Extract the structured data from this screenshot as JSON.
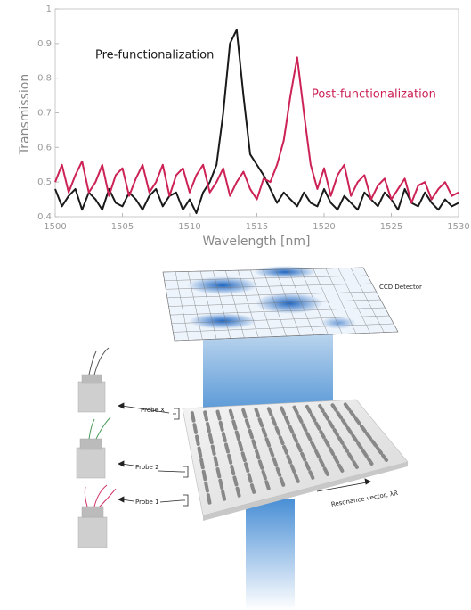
{
  "chart_data": {
    "type": "line",
    "x_label": "Wavelength [nm]",
    "y_label": "Transmission",
    "x": [
      1500,
      1500.5,
      1501,
      1501.5,
      1502,
      1502.5,
      1503,
      1503.5,
      1504,
      1504.5,
      1505,
      1505.5,
      1506,
      1506.5,
      1507,
      1507.5,
      1508,
      1508.5,
      1509,
      1509.5,
      1510,
      1510.5,
      1511,
      1511.5,
      1512,
      1512.5,
      1513,
      1513.5,
      1514,
      1514.5,
      1515,
      1515.5,
      1516,
      1516.5,
      1517,
      1517.5,
      1518,
      1518.5,
      1519,
      1519.5,
      1520,
      1520.5,
      1521,
      1521.5,
      1522,
      1522.5,
      1523,
      1523.5,
      1524,
      1524.5,
      1525,
      1525.5,
      1526,
      1526.5,
      1527,
      1527.5,
      1528,
      1528.5,
      1529,
      1529.5,
      1530
    ],
    "series": [
      {
        "name": "Pre-functionalization",
        "color": "#1a1a1a",
        "values": [
          0.48,
          0.43,
          0.46,
          0.48,
          0.42,
          0.47,
          0.45,
          0.42,
          0.48,
          0.44,
          0.43,
          0.47,
          0.45,
          0.42,
          0.46,
          0.48,
          0.43,
          0.46,
          0.47,
          0.42,
          0.45,
          0.41,
          0.47,
          0.5,
          0.55,
          0.7,
          0.9,
          0.94,
          0.75,
          0.58,
          0.55,
          0.52,
          0.48,
          0.44,
          0.47,
          0.45,
          0.43,
          0.47,
          0.44,
          0.43,
          0.48,
          0.44,
          0.42,
          0.46,
          0.44,
          0.42,
          0.47,
          0.45,
          0.43,
          0.47,
          0.45,
          0.42,
          0.48,
          0.44,
          0.43,
          0.47,
          0.44,
          0.42,
          0.45,
          0.43,
          0.44
        ]
      },
      {
        "name": "Post-functionalization",
        "color": "#cc2255",
        "values": [
          0.5,
          0.55,
          0.47,
          0.52,
          0.56,
          0.47,
          0.5,
          0.55,
          0.46,
          0.52,
          0.54,
          0.46,
          0.51,
          0.55,
          0.47,
          0.5,
          0.55,
          0.46,
          0.52,
          0.54,
          0.47,
          0.52,
          0.55,
          0.47,
          0.5,
          0.54,
          0.46,
          0.5,
          0.53,
          0.48,
          0.45,
          0.51,
          0.5,
          0.55,
          0.62,
          0.75,
          0.86,
          0.7,
          0.55,
          0.48,
          0.54,
          0.46,
          0.52,
          0.55,
          0.46,
          0.5,
          0.52,
          0.45,
          0.49,
          0.51,
          0.45,
          0.48,
          0.51,
          0.44,
          0.49,
          0.5,
          0.45,
          0.48,
          0.5,
          0.46,
          0.47
        ]
      }
    ],
    "xlim": [
      1500,
      1530
    ],
    "xticks": [
      1500,
      1505,
      1510,
      1515,
      1520,
      1525,
      1530
    ],
    "ylim": [
      0.4,
      1
    ],
    "yticks": [
      0.4,
      0.5,
      0.6,
      0.7,
      0.8,
      0.9,
      1
    ]
  },
  "diagram": {
    "detector_label": "CCD Detector",
    "probe_labels": [
      "Probe X",
      "Probe 2",
      "Probe 1"
    ],
    "resonance_label": "Resonance vector, λR"
  }
}
